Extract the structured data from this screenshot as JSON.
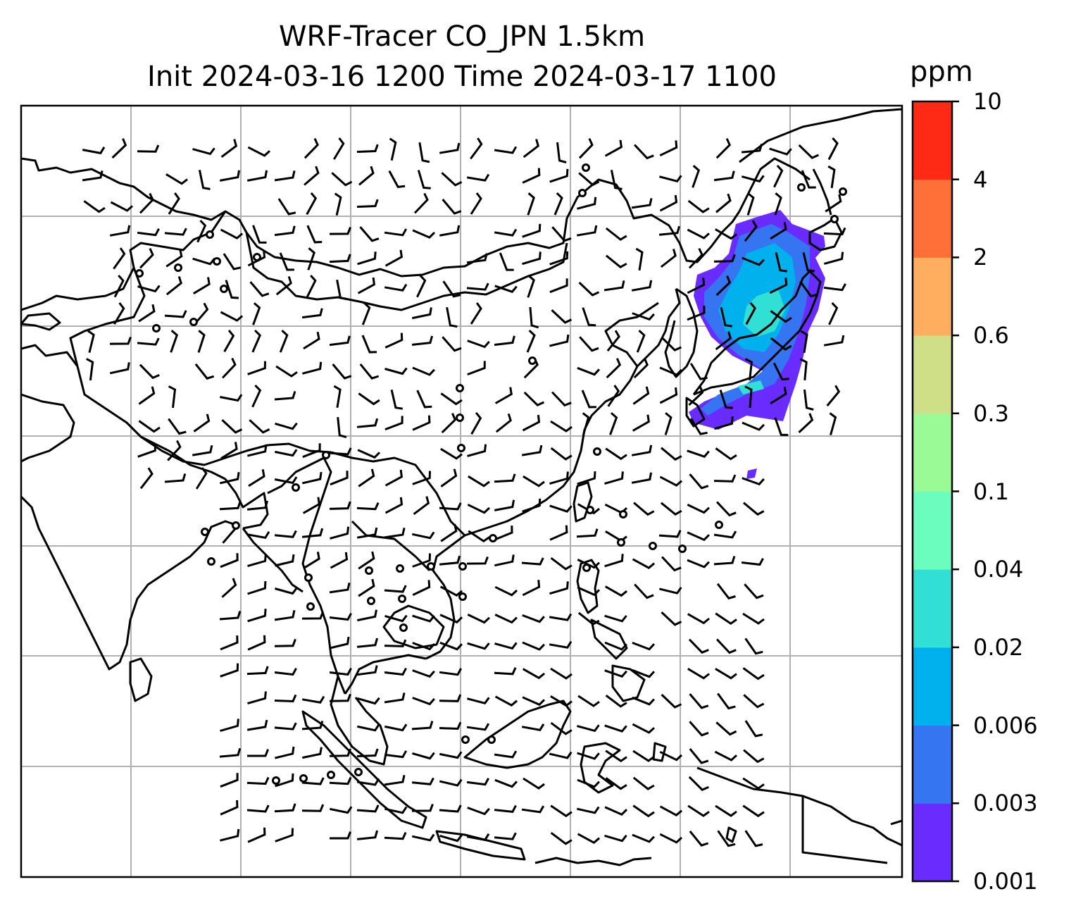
{
  "title": {
    "line1": "WRF-Tracer CO_JPN 1.5km",
    "line2": "Init 2024-03-16 1200 Time 2024-03-17 1100"
  },
  "colorbar": {
    "unit": "ppm",
    "levels": [
      "0.001",
      "0.003",
      "0.006",
      "0.02",
      "0.04",
      "0.1",
      "0.3",
      "0.6",
      "2",
      "4",
      "10"
    ],
    "colors": [
      "#6a2bff",
      "#3575f2",
      "#00b1ee",
      "#31dfd5",
      "#6bfdbd",
      "#9afb96",
      "#cfdf87",
      "#ffae5f",
      "#ff7039",
      "#ff2a16"
    ]
  },
  "map": {
    "background": "#ffffff",
    "coastline_color": "#000000",
    "gridline_color": "#b0b0b0",
    "plume_colors": {
      "outer": "#6a2bff",
      "mid": "#3575f2",
      "inner": "#00b1ee",
      "core": "#31dfd5"
    },
    "calm_marker": "circle",
    "barb_color": "#000000"
  }
}
